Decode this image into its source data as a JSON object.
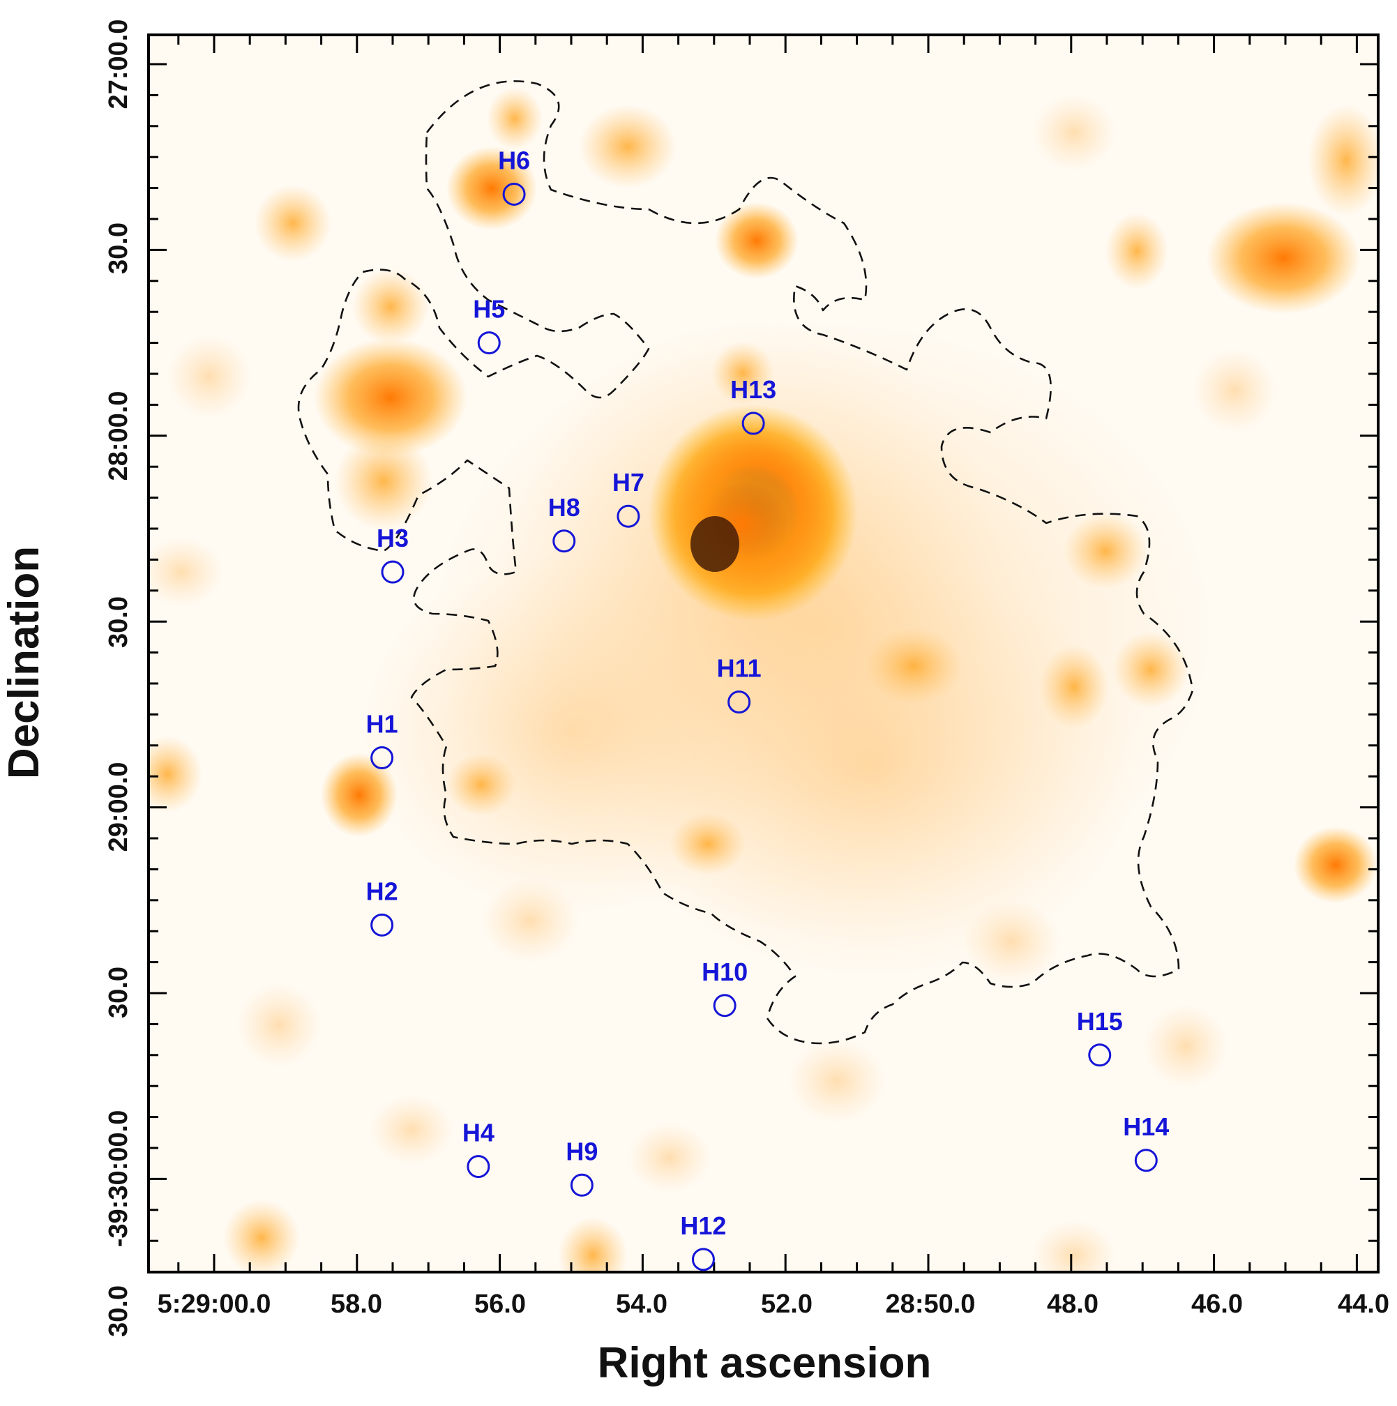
{
  "chart_data": {
    "type": "scatter",
    "xlabel": "Right ascension",
    "ylabel": "Declination",
    "x_ticks": [
      "5:29:00.0",
      "58.0",
      "56.0",
      "54.0",
      "52.0",
      "28:50.0",
      "48.0",
      "46.0",
      "44.0"
    ],
    "y_ticks": [
      "27:00.0",
      "30.0",
      "28:00.0",
      "30.0",
      "29:00.0",
      "30.0",
      "-39:30:00.0",
      "30.0"
    ],
    "grid": false,
    "colormap": "white-orange-brown",
    "sources": [
      {
        "name": "H1",
        "ra_s": 57.65,
        "dec_s": 1672
      },
      {
        "name": "H2",
        "ra_s": 57.65,
        "dec_s": 1699
      },
      {
        "name": "H3",
        "ra_s": 57.5,
        "dec_s": 1642
      },
      {
        "name": "H4",
        "ra_s": 56.3,
        "dec_s": 1738
      },
      {
        "name": "H5",
        "ra_s": 56.15,
        "dec_s": 1605
      },
      {
        "name": "H6",
        "ra_s": 55.8,
        "dec_s": 1581
      },
      {
        "name": "H7",
        "ra_s": 54.2,
        "dec_s": 1633
      },
      {
        "name": "H8",
        "ra_s": 55.1,
        "dec_s": 1637
      },
      {
        "name": "H9",
        "ra_s": 54.85,
        "dec_s": 1741
      },
      {
        "name": "H10",
        "ra_s": 52.85,
        "dec_s": 1712
      },
      {
        "name": "H11",
        "ra_s": 52.65,
        "dec_s": 1663
      },
      {
        "name": "H12",
        "ra_s": 53.15,
        "dec_s": 1753
      },
      {
        "name": "H13",
        "ra_s": 52.45,
        "dec_s": 1618
      },
      {
        "name": "H14",
        "ra_s": 46.95,
        "dec_s": 1737
      },
      {
        "name": "H15",
        "ra_s": 47.6,
        "dec_s": 1720
      }
    ]
  }
}
